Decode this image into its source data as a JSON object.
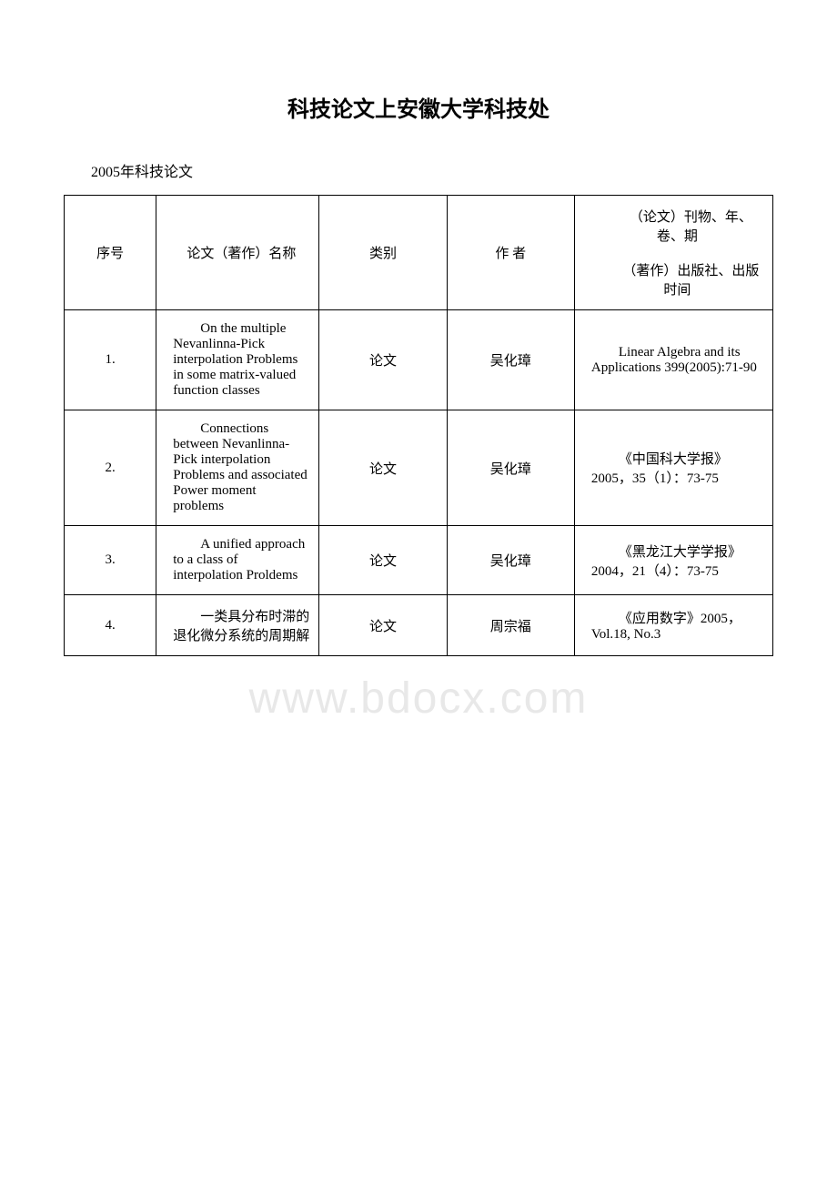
{
  "title": "科技论文上安徽大学科技处",
  "subtitle": "2005年科技论文",
  "watermark": "www.bdocx.com",
  "columns": {
    "num": "序号",
    "name": "论文（著作）名称",
    "type": "类别",
    "author": "作 者",
    "pub_line1": "（论文）刊物、年、卷、期",
    "pub_line2": "（著作）出版社、出版时间"
  },
  "rows": [
    {
      "num": "1.",
      "name": "On the multiple Nevanlinna-Pick interpolation Problems in some matrix-valued function classes",
      "type": "论文",
      "author": "吴化璋",
      "pub": "Linear Algebra and its Applications 399(2005):71-90"
    },
    {
      "num": "2.",
      "name": "Connections between Nevanlinna-Pick interpolation Problems and associated Power moment problems",
      "type": "论文",
      "author": "吴化璋",
      "pub": "《中国科大学报》2005，35（1）：73-75"
    },
    {
      "num": "3.",
      "name": "A unified approach to a class of interpolation Proldems",
      "type": "论文",
      "author": "吴化璋",
      "pub": "《黑龙江大学学报》2004，21（4）：73-75"
    },
    {
      "num": "4.",
      "name": "一类具分布时滞的退化微分系统的周期解",
      "type": "论文",
      "author": "周宗福",
      "pub": "《应用数字》2005，Vol.18, No.3"
    }
  ],
  "style": {
    "background_color": "#ffffff",
    "text_color": "#000000",
    "border_color": "#000000",
    "watermark_color": "#e8e8e8",
    "title_fontsize": 24,
    "body_fontsize": 15
  }
}
